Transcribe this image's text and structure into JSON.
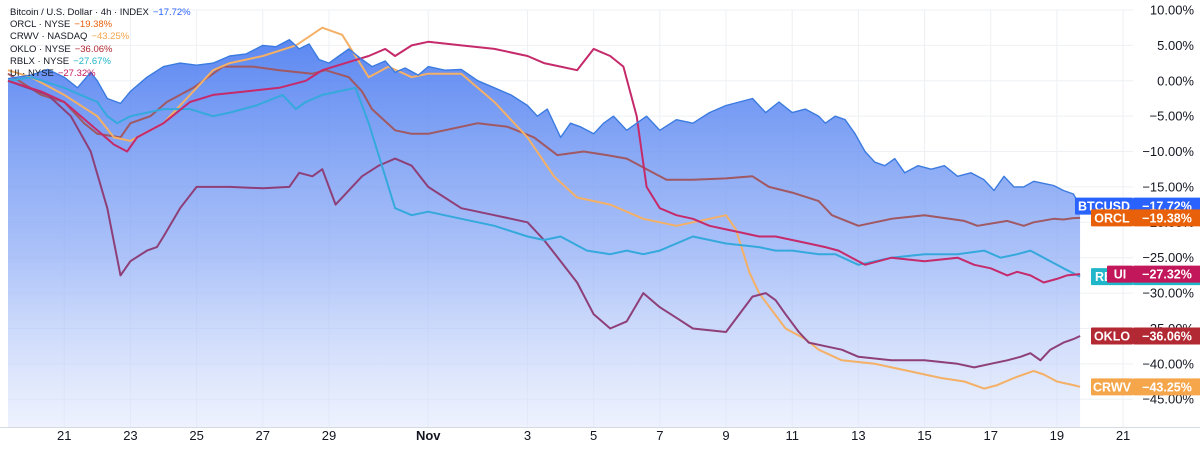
{
  "chart_data": {
    "type": "line",
    "title": "",
    "xlabel": "",
    "ylabel": "",
    "ylim": [
      -45,
      10
    ],
    "y_ticks": [
      10,
      5,
      0,
      -5,
      -10,
      -15,
      -20,
      -25,
      -30,
      -35,
      -40,
      -45
    ],
    "y_tick_labels": [
      "10.00%",
      "5.00%",
      "0.00%",
      "-5.00%",
      "-10.00%",
      "-15.00%",
      "-20.00%",
      "-25.00%",
      "-30.00%",
      "-35.00%",
      "-40.00%",
      "-45.00%"
    ],
    "xlim": [
      19.3,
      53.3
    ],
    "x_ticks": [
      21,
      23,
      25,
      27,
      29,
      32,
      35,
      37,
      39,
      41,
      43,
      45,
      47,
      49,
      51,
      53
    ],
    "x_tick_labels": [
      "21",
      "23",
      "25",
      "27",
      "29",
      "Nov",
      "3",
      "5",
      "7",
      "9",
      "11",
      "13",
      "15",
      "17",
      "19",
      "21"
    ],
    "x_unit": "day (Oct 21 = 21, Nov 1 = 32)",
    "grid": true,
    "legend_position": "top-left",
    "series": [
      {
        "name": "BTCUSD",
        "legend_text": "Bitcoin / U.S. Dollar · 4h · INDEX",
        "legend_value": "−17.72%",
        "badge_label": "BTCUSD",
        "badge_value": "−17.72%",
        "color": "#2962ff",
        "line_color": "#3b7be0",
        "fill": true,
        "x": [
          19.3,
          20.0,
          20.5,
          21.0,
          21.4,
          21.8,
          22.0,
          22.3,
          22.7,
          23.0,
          23.5,
          24.0,
          24.5,
          25.0,
          25.5,
          26.0,
          26.5,
          27.0,
          27.4,
          27.8,
          28.1,
          28.4,
          28.7,
          29.0,
          29.3,
          29.6,
          30.0,
          30.3,
          30.7,
          31.0,
          31.3,
          31.7,
          32.0,
          32.5,
          33.0,
          33.5,
          34.0,
          34.5,
          35.0,
          35.3,
          35.6,
          36.0,
          36.3,
          36.6,
          37.0,
          37.3,
          37.6,
          38.0,
          38.3,
          38.6,
          39.0,
          39.5,
          40.0,
          40.5,
          41.0,
          41.4,
          41.8,
          42.2,
          42.6,
          43.0,
          43.4,
          43.8,
          44.0,
          44.3,
          44.6,
          44.9,
          45.2,
          45.5,
          45.8,
          46.1,
          46.4,
          46.8,
          47.2,
          47.6,
          48.0,
          48.4,
          48.8,
          49.1,
          49.4,
          49.7,
          50.0,
          50.3,
          50.6,
          50.9,
          51.2,
          51.5,
          51.7
        ],
        "y": [
          0.3,
          0.8,
          1.6,
          0.5,
          -1.0,
          1.2,
          0.0,
          -2.5,
          -3.2,
          -1.5,
          0.5,
          2.0,
          2.5,
          2.2,
          2.5,
          3.5,
          3.8,
          5.0,
          4.8,
          5.8,
          4.5,
          5.2,
          3.0,
          2.5,
          3.5,
          4.5,
          3.0,
          2.0,
          2.8,
          1.2,
          1.8,
          0.8,
          2.0,
          1.5,
          1.6,
          0.0,
          -1.0,
          -2.0,
          -3.5,
          -5.0,
          -4.0,
          -8.0,
          -6.0,
          -6.5,
          -7.5,
          -6.0,
          -5.0,
          -7.0,
          -6.0,
          -5.0,
          -7.0,
          -5.5,
          -6.0,
          -4.5,
          -3.5,
          -3.0,
          -2.5,
          -4.5,
          -3.0,
          -4.5,
          -4.0,
          -5.0,
          -6.0,
          -5.0,
          -5.5,
          -7.5,
          -10.0,
          -11.5,
          -12.0,
          -11.0,
          -13.0,
          -12.0,
          -12.5,
          -12.0,
          -13.5,
          -13.0,
          -14.0,
          -15.5,
          -13.5,
          -15.0,
          -15.0,
          -14.2,
          -14.5,
          -14.8,
          -15.5,
          -16.0,
          -17.72
        ]
      },
      {
        "name": "ORCL",
        "legend_text": "ORCL · NYSE",
        "legend_value": "−19.38%",
        "badge_label": "ORCL",
        "badge_value": "−19.38%",
        "color": "#e8600a",
        "line_color": "#a05863",
        "fill": false,
        "x": [
          19.3,
          20.3,
          21.0,
          21.6,
          22.0,
          22.7,
          23.0,
          23.6,
          24.1,
          24.9,
          25.8,
          26.7,
          27.5,
          28.5,
          28.9,
          29.6,
          30.0,
          30.3,
          31.0,
          31.5,
          32.0,
          33.5,
          34.4,
          35.2,
          35.9,
          36.7,
          37.4,
          38.0,
          38.6,
          39.2,
          40.0,
          41.0,
          41.8,
          42.3,
          43.0,
          43.8,
          44.2,
          45.0,
          46.0,
          47.0,
          48.2,
          48.6,
          49.5,
          50.0,
          50.3,
          50.9,
          51.2,
          51.5,
          51.7
        ],
        "y": [
          1.0,
          -2.0,
          -3.0,
          -6.0,
          -7.5,
          -8.0,
          -6.0,
          -5.0,
          -3.0,
          -1.0,
          2.0,
          2.0,
          1.5,
          1.0,
          1.5,
          0.5,
          -1.5,
          -4.0,
          -7.0,
          -7.5,
          -7.5,
          -6.0,
          -6.5,
          -8.0,
          -10.5,
          -10.0,
          -10.5,
          -11.0,
          -12.5,
          -14.0,
          -14.0,
          -13.8,
          -13.5,
          -15.0,
          -15.8,
          -17.0,
          -19.0,
          -20.5,
          -19.5,
          -19.0,
          -19.8,
          -20.5,
          -19.8,
          -20.5,
          -20.0,
          -19.5,
          -19.6,
          -19.4,
          -19.38
        ]
      },
      {
        "name": "CRWV",
        "legend_text": "CRWV · NASDAQ",
        "legend_value": "−43.25%",
        "badge_label": "CRWV",
        "badge_value": "−43.25%",
        "color": "#f5a64b",
        "line_color": "#f4b066",
        "fill": false,
        "x": [
          19.3,
          20.0,
          21.0,
          22.0,
          22.5,
          23.0,
          24.0,
          24.8,
          25.5,
          26.0,
          27.0,
          28.0,
          28.8,
          29.4,
          29.8,
          30.2,
          30.8,
          31.5,
          32.0,
          33.0,
          34.0,
          35.0,
          35.8,
          36.5,
          37.5,
          38.5,
          39.5,
          40.0,
          40.5,
          41.0,
          41.3,
          41.7,
          42.0,
          42.4,
          42.8,
          43.4,
          43.8,
          44.5,
          45.5,
          46.5,
          47.5,
          48.2,
          48.8,
          49.2,
          49.7,
          50.3,
          50.6,
          51.0,
          51.5,
          51.7
        ],
        "y": [
          1.5,
          0.5,
          -2.0,
          -5.0,
          -8.0,
          -8.5,
          -6.0,
          -2.0,
          1.5,
          2.5,
          3.5,
          5.0,
          7.5,
          6.5,
          3.5,
          0.5,
          2.0,
          0.5,
          1.0,
          1.0,
          -3.0,
          -8.0,
          -13.5,
          -16.5,
          -17.5,
          -19.5,
          -20.5,
          -20.0,
          -19.5,
          -19.0,
          -21.0,
          -27.0,
          -30.0,
          -32.5,
          -35.0,
          -36.5,
          -38.0,
          -39.5,
          -40.0,
          -41.0,
          -42.0,
          -42.5,
          -43.5,
          -43.0,
          -42.0,
          -41.0,
          -41.5,
          -42.5,
          -43.0,
          -43.25
        ]
      },
      {
        "name": "OKLO",
        "legend_text": "OKLO · NYSE",
        "legend_value": "−36.06%",
        "badge_label": "OKLO",
        "badge_value": "−36.06%",
        "color": "#b22833",
        "line_color": "#8e3f78",
        "fill": false,
        "x": [
          19.3,
          20.5,
          21.2,
          21.8,
          22.3,
          22.7,
          23.0,
          23.5,
          23.8,
          24.0,
          24.5,
          25.0,
          26.0,
          27.0,
          27.8,
          28.1,
          28.5,
          28.8,
          29.2,
          30.0,
          30.5,
          31.0,
          31.5,
          32.0,
          33.0,
          34.0,
          35.0,
          35.5,
          36.0,
          36.5,
          37.0,
          37.5,
          38.0,
          38.5,
          39.0,
          39.5,
          40.0,
          41.0,
          41.8,
          42.2,
          42.5,
          42.8,
          43.2,
          43.5,
          44.0,
          44.5,
          45.0,
          46.0,
          47.0,
          48.0,
          48.5,
          49.0,
          49.5,
          49.9,
          50.2,
          50.5,
          50.8,
          51.2,
          51.5,
          51.7
        ],
        "y": [
          0.0,
          -2.0,
          -5.0,
          -10.0,
          -18.0,
          -27.5,
          -25.5,
          -24.0,
          -23.5,
          -22.0,
          -18.0,
          -15.0,
          -15.0,
          -15.2,
          -15.0,
          -13.0,
          -13.5,
          -12.5,
          -17.5,
          -13.5,
          -12.0,
          -11.0,
          -12.0,
          -15.0,
          -18.0,
          -19.0,
          -20.0,
          -22.5,
          -25.5,
          -28.5,
          -33.0,
          -35.0,
          -34.0,
          -30.0,
          -32.0,
          -33.5,
          -35.0,
          -35.5,
          -30.5,
          -30.0,
          -31.0,
          -33.0,
          -35.5,
          -37.0,
          -37.5,
          -38.0,
          -39.0,
          -39.5,
          -39.5,
          -40.0,
          -40.5,
          -40.0,
          -39.5,
          -39.0,
          -38.5,
          -39.5,
          -38.0,
          -37.0,
          -36.5,
          -36.06
        ]
      },
      {
        "name": "RBLX",
        "legend_text": "RBLX · NYSE",
        "legend_value": "−27.67%",
        "badge_label": "RBLX",
        "badge_value": "−27.67%",
        "color": "#1fb6c9",
        "line_color": "#35a8dc",
        "fill": false,
        "x": [
          19.3,
          20.0,
          21.0,
          21.5,
          22.0,
          22.3,
          22.6,
          23.0,
          24.0,
          24.8,
          25.5,
          26.0,
          26.8,
          27.6,
          28.0,
          28.3,
          28.8,
          29.3,
          29.8,
          30.2,
          30.6,
          31.0,
          31.5,
          32.0,
          33.0,
          34.0,
          35.0,
          35.5,
          36.0,
          36.8,
          37.5,
          38.0,
          38.5,
          39.0,
          40.0,
          41.0,
          42.0,
          42.5,
          43.0,
          43.8,
          44.3,
          45.0,
          46.0,
          47.0,
          48.0,
          48.8,
          49.3,
          49.8,
          50.2,
          50.8,
          51.2,
          51.5,
          51.7
        ],
        "y": [
          0.0,
          0.5,
          -1.0,
          -2.0,
          -3.0,
          -5.0,
          -6.0,
          -5.0,
          -4.0,
          -4.0,
          -5.0,
          -4.5,
          -3.5,
          -2.0,
          -4.0,
          -3.0,
          -2.0,
          -1.5,
          -1.0,
          -6.0,
          -12.0,
          -18.0,
          -19.0,
          -18.5,
          -19.5,
          -20.5,
          -22.0,
          -22.5,
          -22.0,
          -24.0,
          -24.5,
          -24.0,
          -24.5,
          -24.0,
          -22.0,
          -23.0,
          -23.5,
          -24.0,
          -24.0,
          -24.5,
          -24.5,
          -26.0,
          -25.0,
          -24.5,
          -24.5,
          -24.0,
          -25.0,
          -24.5,
          -24.0,
          -25.5,
          -26.5,
          -27.2,
          -27.67
        ]
      },
      {
        "name": "UI",
        "legend_text": "UI · NYSE",
        "legend_value": "−27.32%",
        "badge_label": "UI",
        "badge_value": "−27.32%",
        "color": "#c2185b",
        "line_color": "#c52a6b",
        "fill": false,
        "x": [
          19.3,
          20.3,
          21.0,
          22.0,
          22.5,
          22.9,
          23.2,
          24.0,
          24.8,
          25.5,
          26.5,
          27.5,
          28.3,
          28.8,
          29.5,
          30.2,
          30.7,
          31.0,
          31.5,
          32.0,
          33.0,
          34.0,
          35.0,
          35.5,
          36.0,
          36.5,
          37.0,
          37.5,
          37.9,
          38.3,
          38.6,
          39.0,
          39.5,
          40.0,
          40.5,
          41.0,
          41.5,
          42.0,
          42.5,
          43.0,
          43.5,
          44.0,
          44.4,
          44.8,
          45.2,
          46.0,
          47.0,
          48.0,
          48.5,
          49.0,
          49.5,
          49.8,
          50.2,
          50.6,
          51.0,
          51.3,
          51.7
        ],
        "y": [
          0.0,
          -1.5,
          -3.0,
          -7.0,
          -9.0,
          -10.0,
          -8.0,
          -6.0,
          -3.0,
          -2.0,
          -1.5,
          -1.0,
          0.0,
          1.5,
          2.5,
          3.5,
          4.5,
          3.5,
          5.0,
          5.5,
          5.0,
          4.5,
          3.5,
          2.5,
          2.0,
          1.5,
          4.5,
          3.5,
          2.0,
          -5.0,
          -15.0,
          -18.0,
          -19.0,
          -19.5,
          -20.5,
          -21.0,
          -21.5,
          -22.0,
          -22.0,
          -22.5,
          -23.0,
          -23.5,
          -24.0,
          -25.0,
          -26.0,
          -25.0,
          -25.5,
          -25.0,
          -26.0,
          -26.5,
          -27.5,
          -27.0,
          -27.5,
          -28.5,
          -28.0,
          -27.5,
          -27.32
        ]
      }
    ]
  }
}
